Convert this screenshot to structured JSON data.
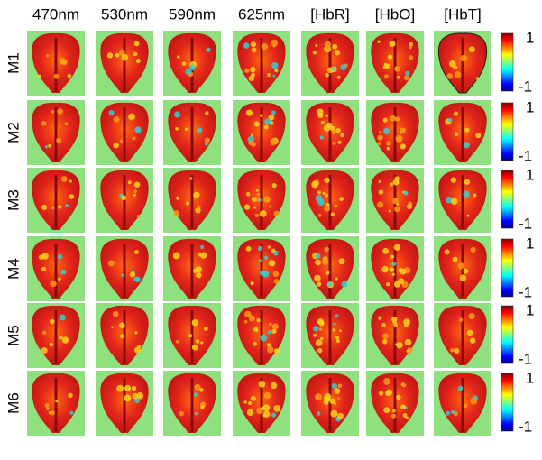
{
  "columns": [
    "470nm",
    "530nm",
    "590nm",
    "625nm",
    "[HbR]",
    "[HbO]",
    "[HbT]"
  ],
  "rows": [
    "M1",
    "M2",
    "M3",
    "M4",
    "M5",
    "M6"
  ],
  "colorbar": {
    "top": "1",
    "bottom": "-1"
  }
}
